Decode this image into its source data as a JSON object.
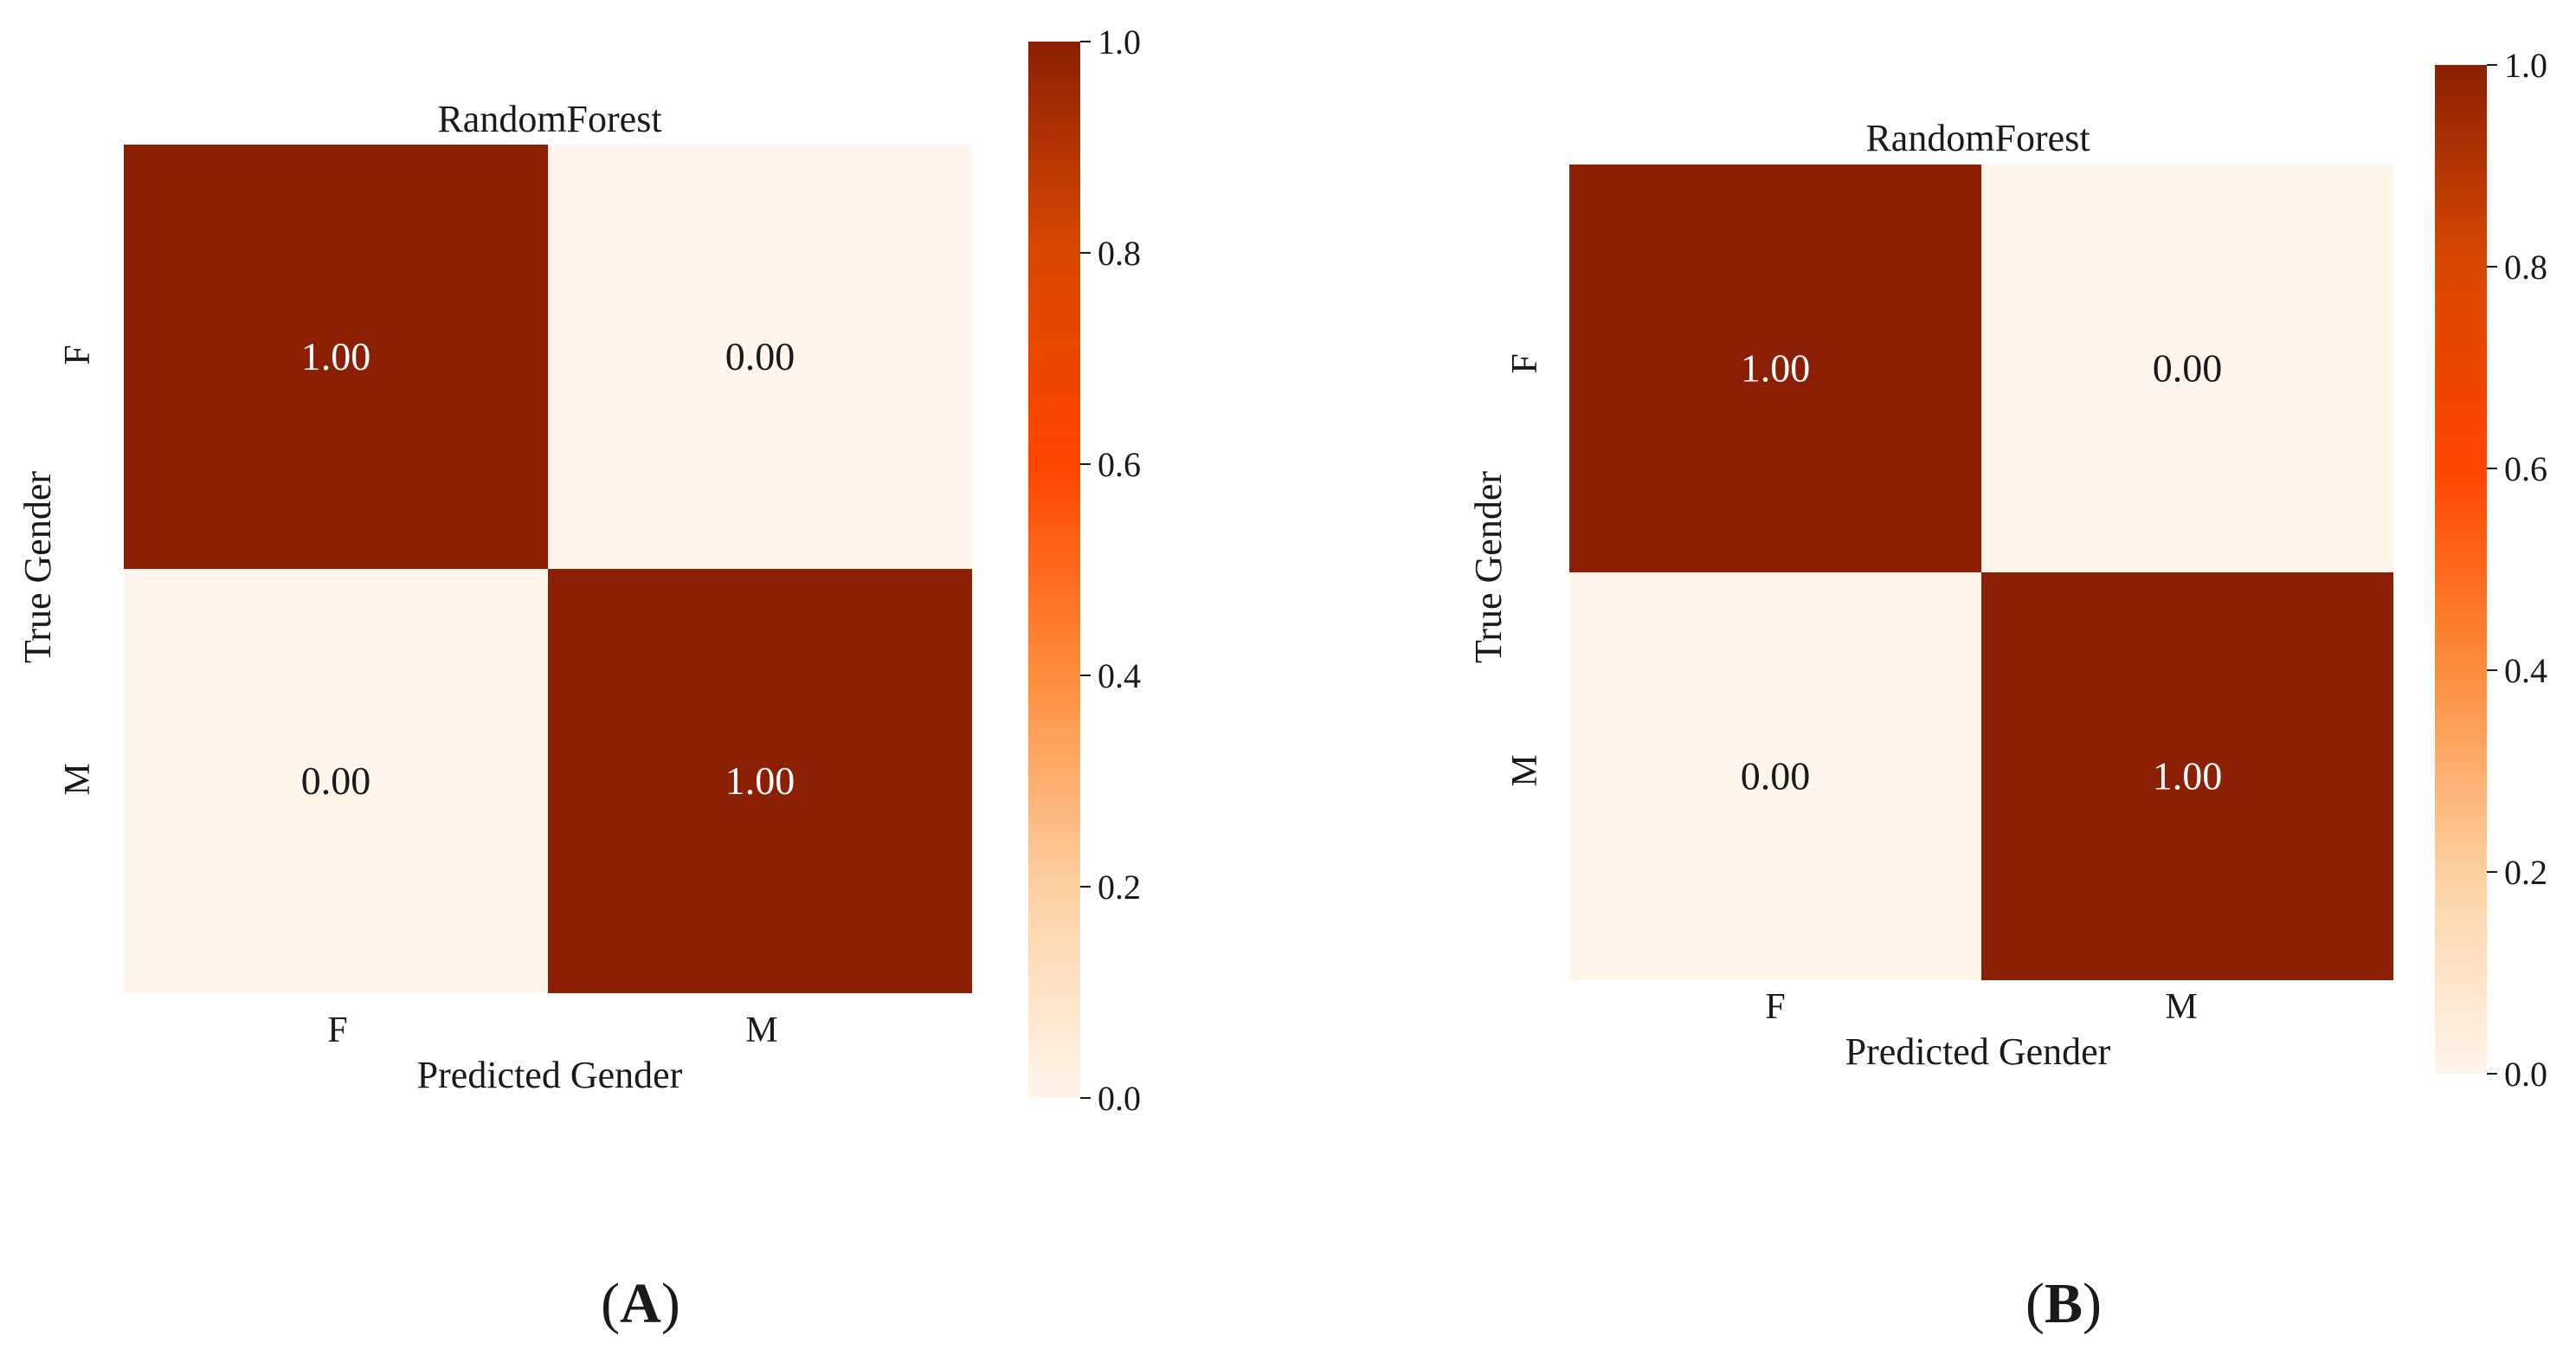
{
  "chart_data": [
    {
      "type": "heatmap",
      "panel_label": "A",
      "title": "RandomForest",
      "xlabel": "Predicted Gender",
      "ylabel": "True Gender",
      "x_categories": [
        "F",
        "M"
      ],
      "y_categories": [
        "F",
        "M"
      ],
      "values": [
        [
          1.0,
          0.0
        ],
        [
          0.0,
          1.0
        ]
      ],
      "value_labels": [
        [
          "1.00",
          "0.00"
        ],
        [
          "0.00",
          "1.00"
        ]
      ],
      "colorbar": {
        "range": [
          0.0,
          1.0
        ],
        "ticks": [
          "0.0",
          "0.2",
          "0.4",
          "0.6",
          "0.8",
          "1.0"
        ],
        "tick_values": [
          0.0,
          0.2,
          0.4,
          0.6,
          0.8,
          1.0
        ]
      }
    },
    {
      "type": "heatmap",
      "panel_label": "B",
      "title": "RandomForest",
      "xlabel": "Predicted Gender",
      "ylabel": "True Gender",
      "x_categories": [
        "F",
        "M"
      ],
      "y_categories": [
        "F",
        "M"
      ],
      "values": [
        [
          1.0,
          0.0
        ],
        [
          0.0,
          1.0
        ]
      ],
      "value_labels": [
        [
          "1.00",
          "0.00"
        ],
        [
          "0.00",
          "1.00"
        ]
      ],
      "colorbar": {
        "range": [
          0.0,
          1.0
        ],
        "ticks": [
          "0.0",
          "0.2",
          "0.4",
          "0.6",
          "0.8",
          "1.0"
        ],
        "tick_values": [
          0.0,
          0.2,
          0.4,
          0.6,
          0.8,
          1.0
        ]
      }
    }
  ],
  "colormap": {
    "name": "Oranges",
    "stops": [
      "#fff5eb",
      "#fdd0a2",
      "#fd8d3c",
      "#ff4500",
      "#d94801",
      "#8c2004"
    ]
  },
  "text_colors": {
    "on_dark": "#ffffff",
    "on_light": "#1a1a1a"
  }
}
